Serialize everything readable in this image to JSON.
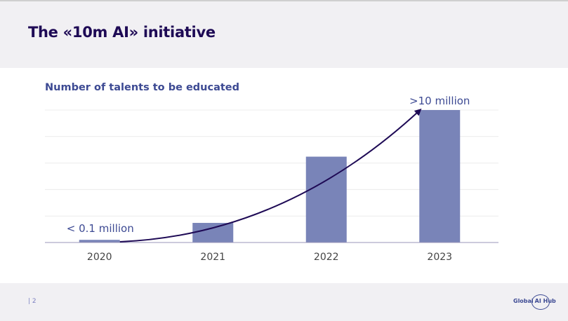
{
  "slide": {
    "title": "The «10m AI» initiative",
    "page_number": "| 2",
    "logo": {
      "left": "Global",
      "right": "AI Hub"
    }
  },
  "colors": {
    "title": "#1e0a55",
    "subtitle": "#3d4a93",
    "bar": "#7984b8",
    "arrow": "#1e0a55",
    "gridline": "#ececec",
    "axis": "#9a96b8",
    "header_bg": "#f1f0f3"
  },
  "chart_data": {
    "type": "bar",
    "title": "Number of talents to be educated",
    "xlabel": "",
    "ylabel": "",
    "categories": [
      "2020",
      "2021",
      "2022",
      "2023"
    ],
    "values": [
      0.1,
      0.74,
      3.24,
      5
    ],
    "value_units": "relative (gridline intervals)",
    "ylim": [
      0,
      5
    ],
    "grid": true,
    "y_tick_labels_shown": false,
    "annotations": [
      {
        "category": "2020",
        "text": "< 0.1 million"
      },
      {
        "category": "2023",
        "text": ">10 million"
      }
    ],
    "trend_arrow": {
      "from": "2020",
      "to": "2023",
      "shape": "curved growth arrow"
    }
  }
}
